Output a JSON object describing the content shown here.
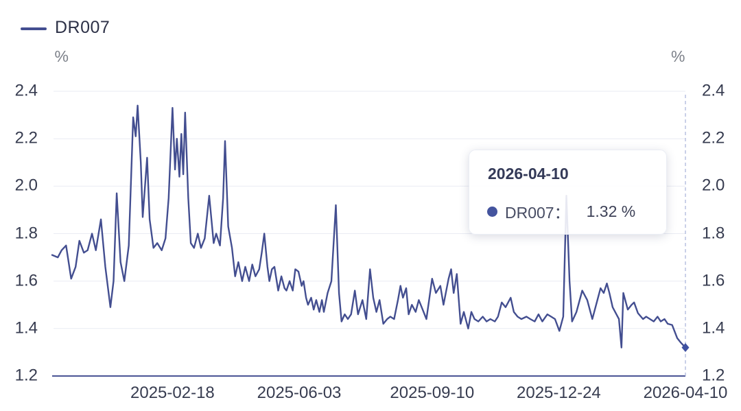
{
  "legend": {
    "label": "DR007"
  },
  "axes": {
    "unit": "%"
  },
  "tooltip": {
    "date": "2026-04-10",
    "series_label": "DR007：",
    "value": "1.32 %"
  },
  "colors": {
    "line": "#434e90",
    "grid": "#e9ebf3",
    "axis": "#4a5494",
    "guide": "#a6b0d8",
    "marker": "#3f51a1",
    "dot": "#44549e"
  },
  "chart_data": {
    "type": "line",
    "title": "",
    "xlabel": "",
    "ylabel": "%",
    "ylim": [
      1.2,
      2.4
    ],
    "grid": "horizontal",
    "legend_position": "top-left",
    "y_ticks": [
      "2.4",
      "2.2",
      "2.0",
      "1.8",
      "1.6",
      "1.4",
      "1.2"
    ],
    "x_ticks": [
      {
        "label": "2025-02-18",
        "f": 0.19
      },
      {
        "label": "2025-06-03",
        "f": 0.39
      },
      {
        "label": "2025-09-10",
        "f": 0.6
      },
      {
        "label": "2025-12-24",
        "f": 0.8
      },
      {
        "label": "2026-04-10",
        "f": 1.0
      }
    ],
    "hover_point": {
      "date": "2026-04-10",
      "value": 1.32
    },
    "series": [
      {
        "name": "DR007",
        "points": [
          [
            0.0,
            1.71
          ],
          [
            0.009,
            1.7
          ],
          [
            0.015,
            1.73
          ],
          [
            0.022,
            1.75
          ],
          [
            0.03,
            1.61
          ],
          [
            0.037,
            1.66
          ],
          [
            0.043,
            1.77
          ],
          [
            0.05,
            1.72
          ],
          [
            0.056,
            1.73
          ],
          [
            0.063,
            1.8
          ],
          [
            0.069,
            1.73
          ],
          [
            0.077,
            1.86
          ],
          [
            0.084,
            1.66
          ],
          [
            0.092,
            1.49
          ],
          [
            0.097,
            1.6
          ],
          [
            0.102,
            1.97
          ],
          [
            0.108,
            1.68
          ],
          [
            0.114,
            1.6
          ],
          [
            0.121,
            1.75
          ],
          [
            0.128,
            2.29
          ],
          [
            0.132,
            2.21
          ],
          [
            0.135,
            2.34
          ],
          [
            0.14,
            2.1
          ],
          [
            0.143,
            1.87
          ],
          [
            0.15,
            2.12
          ],
          [
            0.154,
            1.86
          ],
          [
            0.16,
            1.74
          ],
          [
            0.166,
            1.76
          ],
          [
            0.173,
            1.73
          ],
          [
            0.179,
            1.78
          ],
          [
            0.184,
            1.95
          ],
          [
            0.19,
            2.33
          ],
          [
            0.194,
            2.07
          ],
          [
            0.197,
            2.2
          ],
          [
            0.201,
            2.04
          ],
          [
            0.204,
            2.22
          ],
          [
            0.207,
            2.05
          ],
          [
            0.21,
            2.31
          ],
          [
            0.215,
            1.95
          ],
          [
            0.219,
            1.76
          ],
          [
            0.224,
            1.74
          ],
          [
            0.23,
            1.8
          ],
          [
            0.235,
            1.74
          ],
          [
            0.241,
            1.78
          ],
          [
            0.248,
            1.96
          ],
          [
            0.255,
            1.76
          ],
          [
            0.259,
            1.8
          ],
          [
            0.265,
            1.75
          ],
          [
            0.27,
            1.95
          ],
          [
            0.273,
            2.19
          ],
          [
            0.278,
            1.83
          ],
          [
            0.284,
            1.74
          ],
          [
            0.289,
            1.62
          ],
          [
            0.294,
            1.68
          ],
          [
            0.3,
            1.6
          ],
          [
            0.305,
            1.66
          ],
          [
            0.311,
            1.6
          ],
          [
            0.316,
            1.67
          ],
          [
            0.321,
            1.62
          ],
          [
            0.327,
            1.65
          ],
          [
            0.331,
            1.72
          ],
          [
            0.335,
            1.8
          ],
          [
            0.34,
            1.66
          ],
          [
            0.343,
            1.6
          ],
          [
            0.347,
            1.65
          ],
          [
            0.351,
            1.66
          ],
          [
            0.357,
            1.56
          ],
          [
            0.362,
            1.62
          ],
          [
            0.367,
            1.57
          ],
          [
            0.37,
            1.56
          ],
          [
            0.375,
            1.6
          ],
          [
            0.38,
            1.56
          ],
          [
            0.384,
            1.65
          ],
          [
            0.389,
            1.64
          ],
          [
            0.394,
            1.58
          ],
          [
            0.397,
            1.6
          ],
          [
            0.401,
            1.53
          ],
          [
            0.404,
            1.5
          ],
          [
            0.409,
            1.53
          ],
          [
            0.413,
            1.48
          ],
          [
            0.417,
            1.52
          ],
          [
            0.422,
            1.47
          ],
          [
            0.426,
            1.52
          ],
          [
            0.429,
            1.47
          ],
          [
            0.435,
            1.55
          ],
          [
            0.441,
            1.6
          ],
          [
            0.448,
            1.92
          ],
          [
            0.453,
            1.55
          ],
          [
            0.457,
            1.43
          ],
          [
            0.462,
            1.46
          ],
          [
            0.467,
            1.44
          ],
          [
            0.472,
            1.46
          ],
          [
            0.478,
            1.56
          ],
          [
            0.483,
            1.46
          ],
          [
            0.49,
            1.52
          ],
          [
            0.496,
            1.44
          ],
          [
            0.502,
            1.65
          ],
          [
            0.507,
            1.53
          ],
          [
            0.512,
            1.47
          ],
          [
            0.517,
            1.52
          ],
          [
            0.523,
            1.42
          ],
          [
            0.529,
            1.44
          ],
          [
            0.534,
            1.45
          ],
          [
            0.54,
            1.44
          ],
          [
            0.546,
            1.52
          ],
          [
            0.55,
            1.58
          ],
          [
            0.554,
            1.53
          ],
          [
            0.559,
            1.57
          ],
          [
            0.563,
            1.46
          ],
          [
            0.568,
            1.5
          ],
          [
            0.574,
            1.47
          ],
          [
            0.579,
            1.52
          ],
          [
            0.585,
            1.48
          ],
          [
            0.591,
            1.44
          ],
          [
            0.6,
            1.61
          ],
          [
            0.606,
            1.55
          ],
          [
            0.613,
            1.58
          ],
          [
            0.618,
            1.5
          ],
          [
            0.626,
            1.61
          ],
          [
            0.63,
            1.65
          ],
          [
            0.634,
            1.55
          ],
          [
            0.639,
            1.63
          ],
          [
            0.645,
            1.42
          ],
          [
            0.65,
            1.47
          ],
          [
            0.657,
            1.4
          ],
          [
            0.662,
            1.47
          ],
          [
            0.667,
            1.44
          ],
          [
            0.673,
            1.43
          ],
          [
            0.68,
            1.45
          ],
          [
            0.686,
            1.43
          ],
          [
            0.692,
            1.44
          ],
          [
            0.699,
            1.43
          ],
          [
            0.704,
            1.45
          ],
          [
            0.71,
            1.51
          ],
          [
            0.716,
            1.49
          ],
          [
            0.724,
            1.53
          ],
          [
            0.729,
            1.47
          ],
          [
            0.735,
            1.45
          ],
          [
            0.741,
            1.44
          ],
          [
            0.749,
            1.45
          ],
          [
            0.755,
            1.44
          ],
          [
            0.762,
            1.43
          ],
          [
            0.768,
            1.46
          ],
          [
            0.774,
            1.43
          ],
          [
            0.782,
            1.46
          ],
          [
            0.788,
            1.45
          ],
          [
            0.794,
            1.44
          ],
          [
            0.801,
            1.39
          ],
          [
            0.807,
            1.45
          ],
          [
            0.812,
            1.96
          ],
          [
            0.817,
            1.6
          ],
          [
            0.821,
            1.43
          ],
          [
            0.828,
            1.47
          ],
          [
            0.837,
            1.56
          ],
          [
            0.845,
            1.52
          ],
          [
            0.853,
            1.44
          ],
          [
            0.861,
            1.52
          ],
          [
            0.866,
            1.57
          ],
          [
            0.871,
            1.55
          ],
          [
            0.876,
            1.59
          ],
          [
            0.88,
            1.55
          ],
          [
            0.885,
            1.49
          ],
          [
            0.891,
            1.46
          ],
          [
            0.895,
            1.44
          ],
          [
            0.899,
            1.32
          ],
          [
            0.902,
            1.55
          ],
          [
            0.909,
            1.48
          ],
          [
            0.915,
            1.5
          ],
          [
            0.919,
            1.51
          ],
          [
            0.925,
            1.465
          ],
          [
            0.933,
            1.44
          ],
          [
            0.938,
            1.45
          ],
          [
            0.944,
            1.44
          ],
          [
            0.95,
            1.43
          ],
          [
            0.956,
            1.45
          ],
          [
            0.961,
            1.43
          ],
          [
            0.967,
            1.44
          ],
          [
            0.972,
            1.42
          ],
          [
            0.979,
            1.415
          ],
          [
            0.987,
            1.36
          ],
          [
            0.993,
            1.34
          ],
          [
            1.0,
            1.32
          ]
        ]
      }
    ]
  }
}
